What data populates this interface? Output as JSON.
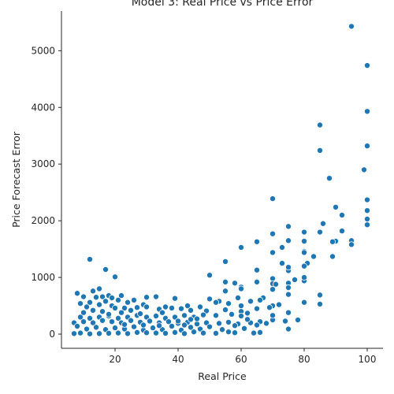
{
  "chart_data": {
    "type": "scatter",
    "title": "Model 3: Real Price vs Price Error",
    "xlabel": "Real Price",
    "ylabel": "Price Forecast Error",
    "xlim": [
      3,
      105
    ],
    "ylim": [
      -250,
      5700
    ],
    "xticks": [
      20,
      40,
      60,
      80,
      100
    ],
    "yticks": [
      0,
      1000,
      2000,
      3000,
      4000,
      5000
    ],
    "xtick_labels": [
      "20",
      "40",
      "60",
      "80",
      "100"
    ],
    "ytick_labels": [
      "0",
      "1000",
      "2000",
      "3000",
      "4000",
      "5000"
    ],
    "grid": false,
    "point_color": "#1f77b4",
    "points": [
      [
        95,
        5430
      ],
      [
        100,
        4740
      ],
      [
        100,
        3930
      ],
      [
        85,
        3690
      ],
      [
        100,
        3320
      ],
      [
        85,
        3240
      ],
      [
        88,
        2750
      ],
      [
        99,
        2900
      ],
      [
        70,
        2390
      ],
      [
        100,
        2370
      ],
      [
        90,
        2240
      ],
      [
        100,
        2180
      ],
      [
        92,
        2100
      ],
      [
        100,
        2030
      ],
      [
        100,
        1930
      ],
      [
        86,
        1950
      ],
      [
        75,
        1900
      ],
      [
        80,
        1800
      ],
      [
        85,
        1800
      ],
      [
        70,
        1770
      ],
      [
        92,
        1820
      ],
      [
        90,
        1640
      ],
      [
        89,
        1630
      ],
      [
        95,
        1650
      ],
      [
        95,
        1580
      ],
      [
        65,
        1630
      ],
      [
        75,
        1650
      ],
      [
        80,
        1640
      ],
      [
        73,
        1530
      ],
      [
        60,
        1530
      ],
      [
        80,
        1460
      ],
      [
        80,
        1440
      ],
      [
        70,
        1440
      ],
      [
        83,
        1370
      ],
      [
        89,
        1370
      ],
      [
        12,
        1320
      ],
      [
        55,
        1280
      ],
      [
        81,
        1250
      ],
      [
        73,
        1250
      ],
      [
        80,
        1200
      ],
      [
        17,
        1140
      ],
      [
        65,
        1130
      ],
      [
        75,
        1120
      ],
      [
        77,
        960
      ],
      [
        50,
        1040
      ],
      [
        20,
        1010
      ],
      [
        70,
        980
      ],
      [
        80,
        940
      ],
      [
        75,
        900
      ],
      [
        70,
        890
      ],
      [
        55,
        920
      ],
      [
        58,
        900
      ],
      [
        65,
        920
      ],
      [
        60,
        830
      ],
      [
        75,
        820
      ],
      [
        60,
        800
      ],
      [
        55,
        760
      ],
      [
        70,
        790
      ],
      [
        8,
        720
      ],
      [
        15,
        800
      ],
      [
        13,
        760
      ],
      [
        33,
        660
      ],
      [
        10,
        660
      ],
      [
        18,
        680
      ],
      [
        16,
        660
      ],
      [
        14,
        650
      ],
      [
        19,
        640
      ],
      [
        22,
        680
      ],
      [
        26,
        600
      ],
      [
        30,
        650
      ],
      [
        39,
        630
      ],
      [
        50,
        620
      ],
      [
        53,
        580
      ],
      [
        59,
        640
      ],
      [
        67,
        640
      ],
      [
        85,
        690
      ],
      [
        72,
        520
      ],
      [
        66,
        600
      ],
      [
        63,
        580
      ],
      [
        60,
        500
      ],
      [
        56,
        540
      ],
      [
        52,
        560
      ],
      [
        47,
        480
      ],
      [
        43,
        500
      ],
      [
        36,
        480
      ],
      [
        29,
        520
      ],
      [
        24,
        560
      ],
      [
        21,
        600
      ],
      [
        17,
        580
      ],
      [
        12,
        560
      ],
      [
        9,
        540
      ],
      [
        11,
        480
      ],
      [
        15,
        520
      ],
      [
        19,
        500
      ],
      [
        23,
        460
      ],
      [
        27,
        470
      ],
      [
        30,
        480
      ],
      [
        34,
        440
      ],
      [
        38,
        460
      ],
      [
        41,
        450
      ],
      [
        44,
        420
      ],
      [
        49,
        410
      ],
      [
        55,
        430
      ],
      [
        60,
        400
      ],
      [
        65,
        450
      ],
      [
        70,
        500
      ],
      [
        75,
        380
      ],
      [
        80,
        560
      ],
      [
        85,
        530
      ],
      [
        69,
        470
      ],
      [
        62,
        370
      ],
      [
        57,
        350
      ],
      [
        52,
        330
      ],
      [
        48,
        340
      ],
      [
        45,
        300
      ],
      [
        42,
        330
      ],
      [
        39,
        300
      ],
      [
        36,
        280
      ],
      [
        33,
        320
      ],
      [
        30,
        300
      ],
      [
        27,
        330
      ],
      [
        24,
        300
      ],
      [
        21,
        280
      ],
      [
        18,
        320
      ],
      [
        15,
        300
      ],
      [
        12,
        280
      ],
      [
        9,
        300
      ],
      [
        7,
        200
      ],
      [
        10,
        220
      ],
      [
        13,
        200
      ],
      [
        16,
        240
      ],
      [
        19,
        220
      ],
      [
        22,
        200
      ],
      [
        25,
        240
      ],
      [
        28,
        210
      ],
      [
        31,
        230
      ],
      [
        34,
        200
      ],
      [
        37,
        220
      ],
      [
        40,
        190
      ],
      [
        43,
        210
      ],
      [
        46,
        180
      ],
      [
        49,
        200
      ],
      [
        53,
        190
      ],
      [
        56,
        210
      ],
      [
        59,
        180
      ],
      [
        63,
        200
      ],
      [
        66,
        220
      ],
      [
        70,
        250
      ],
      [
        74,
        230
      ],
      [
        78,
        250
      ],
      [
        68,
        190
      ],
      [
        58,
        150
      ],
      [
        50,
        130
      ],
      [
        44,
        120
      ],
      [
        38,
        140
      ],
      [
        32,
        110
      ],
      [
        26,
        130
      ],
      [
        20,
        110
      ],
      [
        14,
        120
      ],
      [
        8,
        140
      ],
      [
        11,
        90
      ],
      [
        17,
        80
      ],
      [
        23,
        90
      ],
      [
        29,
        70
      ],
      [
        35,
        80
      ],
      [
        41,
        70
      ],
      [
        47,
        90
      ],
      [
        54,
        80
      ],
      [
        61,
        100
      ],
      [
        75,
        90
      ],
      [
        65,
        160
      ],
      [
        45,
        40
      ],
      [
        39,
        30
      ],
      [
        33,
        20
      ],
      [
        27,
        30
      ],
      [
        21,
        20
      ],
      [
        15,
        10
      ],
      [
        9,
        20
      ],
      [
        7,
        10
      ],
      [
        12,
        5
      ],
      [
        18,
        15
      ],
      [
        24,
        10
      ],
      [
        30,
        25
      ],
      [
        36,
        15
      ],
      [
        42,
        10
      ],
      [
        48,
        20
      ],
      [
        52,
        15
      ],
      [
        58,
        25
      ],
      [
        64,
        20
      ],
      [
        66,
        30
      ],
      [
        16,
        400
      ],
      [
        22,
        380
      ],
      [
        28,
        360
      ],
      [
        20,
        460
      ],
      [
        25,
        420
      ],
      [
        35,
        380
      ],
      [
        44,
        260
      ],
      [
        40,
        230
      ],
      [
        46,
        270
      ],
      [
        56,
        40
      ],
      [
        62,
        260
      ],
      [
        70,
        330
      ],
      [
        10,
        380
      ],
      [
        13,
        420
      ],
      [
        18,
        350
      ],
      [
        23,
        170
      ],
      [
        29,
        160
      ],
      [
        34,
        150
      ],
      [
        42,
        160
      ],
      [
        60,
        320
      ],
      [
        75,
        700
      ],
      [
        71,
        880
      ],
      [
        80,
        1000
      ],
      [
        75,
        1180
      ]
    ]
  }
}
